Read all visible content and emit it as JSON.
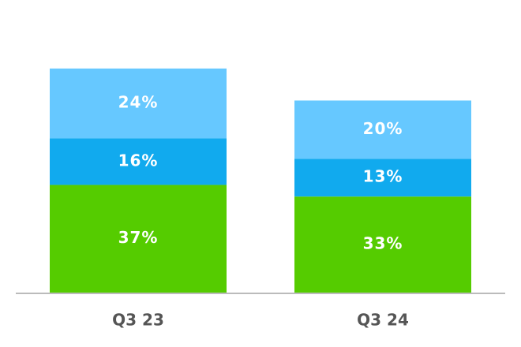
{
  "chart_data": {
    "type": "stacked-bar",
    "categories": [
      "Q3 23",
      "Q3 24"
    ],
    "series": [
      {
        "color": "#55cc00",
        "values": [
          37,
          33
        ],
        "value_labels": [
          "37%",
          "33%"
        ]
      },
      {
        "color": "#11aaee",
        "values": [
          16,
          13
        ],
        "value_labels": [
          "16%",
          "13%"
        ]
      },
      {
        "color": "#66c8ff",
        "values": [
          24,
          20
        ],
        "value_labels": [
          "24%",
          "20%"
        ]
      }
    ]
  }
}
